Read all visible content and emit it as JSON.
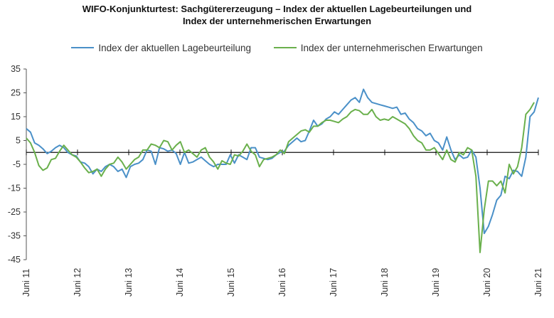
{
  "title_line1": "WIFO-Konjunkturtest: Sachgütererzeugung – Index der aktuellen Lagebeurteilungen und",
  "title_line2": "Index der unternehmerischen Erwartungen",
  "chart_data": {
    "type": "line",
    "ylim": [
      -45,
      35
    ],
    "yticks": [
      35,
      25,
      15,
      5,
      -5,
      -15,
      -25,
      -35,
      -45
    ],
    "x_range": [
      "2011-06",
      "2021-06"
    ],
    "x_ticks": [
      "Juni 11",
      "Juni 12",
      "Juni 13",
      "Juni 14",
      "Juni 15",
      "Juni 16",
      "Juni 17",
      "Juni 18",
      "Juni 19",
      "Juni 20",
      "Juni 21"
    ],
    "legend_position": "top",
    "grid": false,
    "series": [
      {
        "name": "Index der aktuellen Lagebeurteilung",
        "color": "#4a90c8",
        "values": [
          10,
          8.5,
          4,
          3,
          1.5,
          -0.5,
          0.5,
          2,
          3,
          2,
          0,
          -1,
          -1.5,
          -4,
          -4.5,
          -6,
          -9,
          -7,
          -8,
          -6,
          -5,
          -6,
          -8,
          -7,
          -10.5,
          -6,
          -5,
          -4.5,
          -3,
          1,
          0.5,
          -5,
          2,
          1.5,
          0.5,
          1,
          -0.5,
          -5,
          0,
          -4.5,
          -4,
          -3,
          -2,
          -3.5,
          -5,
          -6,
          -5,
          -5,
          -5,
          -1,
          -4.5,
          -1,
          -2,
          -3,
          2,
          2,
          -2,
          -2.5,
          -3,
          -2.5,
          -1,
          0,
          0.5,
          3,
          4.5,
          6,
          4.5,
          5,
          9,
          13.5,
          11,
          12,
          14,
          15,
          17,
          16,
          18,
          20,
          22,
          23,
          21,
          26.5,
          23,
          21,
          20.5,
          20,
          19.5,
          19,
          18.5,
          19,
          16,
          16.5,
          14,
          12.5,
          10,
          9,
          7,
          8,
          5,
          4,
          1,
          6.5,
          1,
          -3,
          -1,
          -2.5,
          -2,
          1,
          -2,
          -15,
          -34,
          -31,
          -26,
          -20,
          -18,
          -10,
          -11,
          -7.5,
          -8,
          -10,
          -2,
          15,
          17,
          23
        ]
      },
      {
        "name": "Index der unternehmerischen Erwartungen",
        "color": "#6ab04c",
        "values": [
          6,
          4,
          0,
          -5.5,
          -7.5,
          -6.5,
          -3,
          -2.5,
          0.5,
          3,
          1,
          -1,
          -2,
          -4,
          -6.5,
          -8.5,
          -8,
          -7,
          -10,
          -7,
          -5,
          -4.5,
          -2,
          -4,
          -7,
          -5,
          -3,
          -2,
          1,
          1,
          3.5,
          3,
          2,
          5,
          4.5,
          1,
          3,
          4.5,
          0,
          1,
          -0.5,
          -2,
          1,
          2,
          -2,
          -4,
          -7,
          -3.5,
          -4.5,
          -5,
          -1,
          -1.5,
          0.5,
          3.5,
          0.5,
          -1,
          -6,
          -3,
          -2.5,
          -2,
          -1,
          1,
          -0.5,
          4.5,
          6,
          7.5,
          9,
          9.5,
          8.5,
          11,
          11,
          12.5,
          13.5,
          13.5,
          13,
          12.5,
          14,
          15,
          17,
          18,
          17.5,
          16,
          16,
          18,
          15,
          13.5,
          14,
          13.5,
          15,
          14,
          13,
          12,
          10,
          7,
          5,
          4,
          1,
          1,
          2,
          -0.5,
          -3,
          1,
          -3,
          -4,
          0,
          -1,
          2,
          1,
          -10,
          -42,
          -24,
          -12,
          -12,
          -14,
          -12,
          -17,
          -5,
          -9,
          -6,
          2,
          16,
          18,
          21
        ]
      }
    ]
  }
}
